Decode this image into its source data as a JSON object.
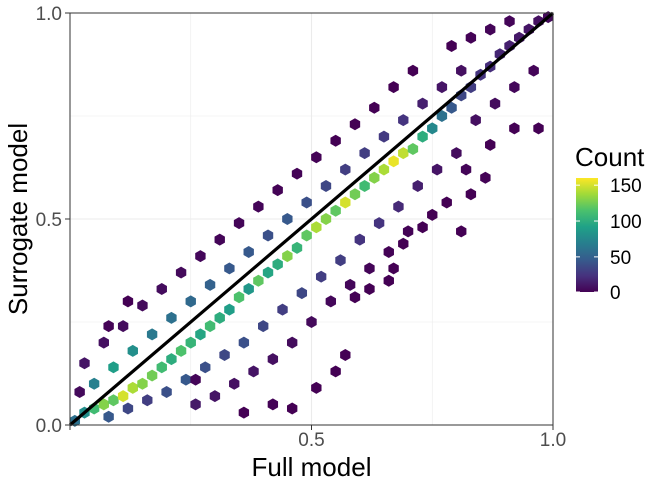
{
  "chart_data": {
    "type": "heatmap",
    "subtype": "hexbin",
    "title": "",
    "xlabel": "Full model",
    "ylabel": "Surrogate model",
    "xlim": [
      0,
      1
    ],
    "ylim": [
      0,
      1
    ],
    "x_ticks": [
      0.0,
      0.5,
      1.0
    ],
    "y_ticks": [
      0.0,
      0.5,
      1.0
    ],
    "x_tick_labels": [
      "",
      "0.5",
      "1.0"
    ],
    "y_tick_labels": [
      "0.0",
      "0.5",
      "1.0"
    ],
    "grid": true,
    "reference_line": {
      "slope": 1,
      "intercept": 0,
      "color": "#000000"
    },
    "legend": {
      "title": "Count",
      "position": "right",
      "ticks": [
        0,
        50,
        100,
        150
      ],
      "tick_labels": [
        "0",
        "50",
        "100",
        "150"
      ],
      "min": 1,
      "max": 160,
      "colormap": "viridis"
    },
    "colors": {
      "viridis": [
        "#440154",
        "#46327e",
        "#365c8d",
        "#277f8e",
        "#1fa187",
        "#4ac16d",
        "#a0da39",
        "#fde725"
      ],
      "grid": "#ebebeb",
      "panel_border": "#333333",
      "tick_text": "#4d4d4d",
      "axis_title": "#000000"
    },
    "hex_size_data_units": 0.02,
    "bins": [
      {
        "x": 0.01,
        "y": 0.01,
        "count": 60
      },
      {
        "x": 0.03,
        "y": 0.03,
        "count": 80
      },
      {
        "x": 0.05,
        "y": 0.04,
        "count": 110
      },
      {
        "x": 0.07,
        "y": 0.05,
        "count": 130
      },
      {
        "x": 0.09,
        "y": 0.06,
        "count": 120
      },
      {
        "x": 0.11,
        "y": 0.07,
        "count": 150
      },
      {
        "x": 0.13,
        "y": 0.09,
        "count": 140
      },
      {
        "x": 0.15,
        "y": 0.1,
        "count": 130
      },
      {
        "x": 0.17,
        "y": 0.12,
        "count": 125
      },
      {
        "x": 0.19,
        "y": 0.14,
        "count": 110
      },
      {
        "x": 0.21,
        "y": 0.16,
        "count": 100
      },
      {
        "x": 0.23,
        "y": 0.18,
        "count": 115
      },
      {
        "x": 0.25,
        "y": 0.2,
        "count": 105
      },
      {
        "x": 0.27,
        "y": 0.22,
        "count": 95
      },
      {
        "x": 0.29,
        "y": 0.24,
        "count": 110
      },
      {
        "x": 0.31,
        "y": 0.26,
        "count": 100
      },
      {
        "x": 0.33,
        "y": 0.28,
        "count": 90
      },
      {
        "x": 0.35,
        "y": 0.31,
        "count": 115
      },
      {
        "x": 0.37,
        "y": 0.33,
        "count": 85
      },
      {
        "x": 0.39,
        "y": 0.35,
        "count": 120
      },
      {
        "x": 0.41,
        "y": 0.37,
        "count": 95
      },
      {
        "x": 0.43,
        "y": 0.39,
        "count": 100
      },
      {
        "x": 0.45,
        "y": 0.41,
        "count": 130
      },
      {
        "x": 0.47,
        "y": 0.43,
        "count": 105
      },
      {
        "x": 0.49,
        "y": 0.46,
        "count": 120
      },
      {
        "x": 0.51,
        "y": 0.48,
        "count": 140
      },
      {
        "x": 0.53,
        "y": 0.5,
        "count": 130
      },
      {
        "x": 0.55,
        "y": 0.52,
        "count": 120
      },
      {
        "x": 0.57,
        "y": 0.54,
        "count": 150
      },
      {
        "x": 0.59,
        "y": 0.56,
        "count": 125
      },
      {
        "x": 0.61,
        "y": 0.58,
        "count": 110
      },
      {
        "x": 0.63,
        "y": 0.6,
        "count": 130
      },
      {
        "x": 0.65,
        "y": 0.62,
        "count": 140
      },
      {
        "x": 0.67,
        "y": 0.64,
        "count": 155
      },
      {
        "x": 0.69,
        "y": 0.66,
        "count": 145
      },
      {
        "x": 0.71,
        "y": 0.67,
        "count": 120
      },
      {
        "x": 0.73,
        "y": 0.7,
        "count": 100
      },
      {
        "x": 0.75,
        "y": 0.72,
        "count": 75
      },
      {
        "x": 0.77,
        "y": 0.75,
        "count": 60
      },
      {
        "x": 0.79,
        "y": 0.77,
        "count": 45
      },
      {
        "x": 0.81,
        "y": 0.8,
        "count": 35
      },
      {
        "x": 0.83,
        "y": 0.82,
        "count": 30
      },
      {
        "x": 0.85,
        "y": 0.85,
        "count": 25
      },
      {
        "x": 0.87,
        "y": 0.87,
        "count": 22
      },
      {
        "x": 0.89,
        "y": 0.9,
        "count": 18
      },
      {
        "x": 0.91,
        "y": 0.92,
        "count": 15
      },
      {
        "x": 0.93,
        "y": 0.94,
        "count": 12
      },
      {
        "x": 0.95,
        "y": 0.96,
        "count": 10
      },
      {
        "x": 0.97,
        "y": 0.98,
        "count": 8
      },
      {
        "x": 0.99,
        "y": 0.99,
        "count": 5
      },
      {
        "x": 0.05,
        "y": 0.1,
        "count": 70
      },
      {
        "x": 0.09,
        "y": 0.14,
        "count": 90
      },
      {
        "x": 0.13,
        "y": 0.18,
        "count": 80
      },
      {
        "x": 0.17,
        "y": 0.22,
        "count": 65
      },
      {
        "x": 0.21,
        "y": 0.26,
        "count": 60
      },
      {
        "x": 0.25,
        "y": 0.3,
        "count": 55
      },
      {
        "x": 0.29,
        "y": 0.34,
        "count": 50
      },
      {
        "x": 0.33,
        "y": 0.38,
        "count": 45
      },
      {
        "x": 0.37,
        "y": 0.42,
        "count": 45
      },
      {
        "x": 0.41,
        "y": 0.46,
        "count": 40
      },
      {
        "x": 0.45,
        "y": 0.5,
        "count": 45
      },
      {
        "x": 0.49,
        "y": 0.54,
        "count": 40
      },
      {
        "x": 0.53,
        "y": 0.58,
        "count": 35
      },
      {
        "x": 0.57,
        "y": 0.62,
        "count": 30
      },
      {
        "x": 0.61,
        "y": 0.66,
        "count": 30
      },
      {
        "x": 0.65,
        "y": 0.7,
        "count": 28
      },
      {
        "x": 0.69,
        "y": 0.74,
        "count": 25
      },
      {
        "x": 0.73,
        "y": 0.78,
        "count": 15
      },
      {
        "x": 0.77,
        "y": 0.82,
        "count": 10
      },
      {
        "x": 0.81,
        "y": 0.86,
        "count": 8
      },
      {
        "x": 0.08,
        "y": 0.02,
        "count": 45
      },
      {
        "x": 0.12,
        "y": 0.04,
        "count": 35
      },
      {
        "x": 0.16,
        "y": 0.06,
        "count": 30
      },
      {
        "x": 0.2,
        "y": 0.08,
        "count": 40
      },
      {
        "x": 0.24,
        "y": 0.11,
        "count": 45
      },
      {
        "x": 0.28,
        "y": 0.14,
        "count": 40
      },
      {
        "x": 0.32,
        "y": 0.17,
        "count": 35
      },
      {
        "x": 0.36,
        "y": 0.2,
        "count": 40
      },
      {
        "x": 0.4,
        "y": 0.24,
        "count": 35
      },
      {
        "x": 0.44,
        "y": 0.28,
        "count": 30
      },
      {
        "x": 0.48,
        "y": 0.32,
        "count": 35
      },
      {
        "x": 0.52,
        "y": 0.36,
        "count": 30
      },
      {
        "x": 0.56,
        "y": 0.4,
        "count": 30
      },
      {
        "x": 0.6,
        "y": 0.45,
        "count": 25
      },
      {
        "x": 0.64,
        "y": 0.49,
        "count": 25
      },
      {
        "x": 0.68,
        "y": 0.53,
        "count": 20
      },
      {
        "x": 0.72,
        "y": 0.58,
        "count": 15
      },
      {
        "x": 0.76,
        "y": 0.62,
        "count": 10
      },
      {
        "x": 0.26,
        "y": 0.05,
        "count": 12
      },
      {
        "x": 0.3,
        "y": 0.07,
        "count": 10
      },
      {
        "x": 0.34,
        "y": 0.1,
        "count": 8
      },
      {
        "x": 0.38,
        "y": 0.13,
        "count": 10
      },
      {
        "x": 0.42,
        "y": 0.16,
        "count": 8
      },
      {
        "x": 0.46,
        "y": 0.2,
        "count": 6
      },
      {
        "x": 0.5,
        "y": 0.25,
        "count": 5
      },
      {
        "x": 0.54,
        "y": 0.3,
        "count": 4
      },
      {
        "x": 0.58,
        "y": 0.34,
        "count": 4
      },
      {
        "x": 0.62,
        "y": 0.38,
        "count": 3
      },
      {
        "x": 0.66,
        "y": 0.42,
        "count": 2
      },
      {
        "x": 0.7,
        "y": 0.47,
        "count": 2
      },
      {
        "x": 0.03,
        "y": 0.15,
        "count": 10
      },
      {
        "x": 0.07,
        "y": 0.2,
        "count": 8
      },
      {
        "x": 0.11,
        "y": 0.24,
        "count": 6
      },
      {
        "x": 0.15,
        "y": 0.29,
        "count": 5
      },
      {
        "x": 0.19,
        "y": 0.33,
        "count": 6
      },
      {
        "x": 0.23,
        "y": 0.37,
        "count": 5
      },
      {
        "x": 0.27,
        "y": 0.41,
        "count": 4
      },
      {
        "x": 0.31,
        "y": 0.45,
        "count": 3
      },
      {
        "x": 0.35,
        "y": 0.49,
        "count": 3
      },
      {
        "x": 0.39,
        "y": 0.53,
        "count": 3
      },
      {
        "x": 0.43,
        "y": 0.57,
        "count": 2
      },
      {
        "x": 0.47,
        "y": 0.61,
        "count": 2
      },
      {
        "x": 0.51,
        "y": 0.65,
        "count": 2
      },
      {
        "x": 0.55,
        "y": 0.69,
        "count": 1
      },
      {
        "x": 0.59,
        "y": 0.73,
        "count": 1
      },
      {
        "x": 0.63,
        "y": 0.77,
        "count": 1
      },
      {
        "x": 0.67,
        "y": 0.82,
        "count": 1
      },
      {
        "x": 0.71,
        "y": 0.86,
        "count": 1
      },
      {
        "x": 0.79,
        "y": 0.92,
        "count": 1
      },
      {
        "x": 0.83,
        "y": 0.94,
        "count": 2
      },
      {
        "x": 0.87,
        "y": 0.96,
        "count": 3
      },
      {
        "x": 0.91,
        "y": 0.98,
        "count": 3
      },
      {
        "x": 0.84,
        "y": 0.74,
        "count": 8
      },
      {
        "x": 0.88,
        "y": 0.78,
        "count": 6
      },
      {
        "x": 0.92,
        "y": 0.82,
        "count": 4
      },
      {
        "x": 0.96,
        "y": 0.86,
        "count": 3
      },
      {
        "x": 0.8,
        "y": 0.66,
        "count": 6
      },
      {
        "x": 0.82,
        "y": 0.62,
        "count": 3
      },
      {
        "x": 0.86,
        "y": 0.6,
        "count": 2
      },
      {
        "x": 0.92,
        "y": 0.72,
        "count": 1
      },
      {
        "x": 0.97,
        "y": 0.72,
        "count": 1
      },
      {
        "x": 0.87,
        "y": 0.68,
        "count": 1
      },
      {
        "x": 0.78,
        "y": 0.54,
        "count": 1
      },
      {
        "x": 0.83,
        "y": 0.56,
        "count": 1
      },
      {
        "x": 0.75,
        "y": 0.51,
        "count": 1
      },
      {
        "x": 0.73,
        "y": 0.48,
        "count": 1
      },
      {
        "x": 0.81,
        "y": 0.47,
        "count": 1
      },
      {
        "x": 0.69,
        "y": 0.44,
        "count": 1
      },
      {
        "x": 0.67,
        "y": 0.38,
        "count": 1
      },
      {
        "x": 0.62,
        "y": 0.33,
        "count": 1
      },
      {
        "x": 0.66,
        "y": 0.35,
        "count": 1
      },
      {
        "x": 0.59,
        "y": 0.31,
        "count": 1
      },
      {
        "x": 0.57,
        "y": 0.17,
        "count": 1
      },
      {
        "x": 0.55,
        "y": 0.13,
        "count": 1
      },
      {
        "x": 0.51,
        "y": 0.09,
        "count": 1
      },
      {
        "x": 0.46,
        "y": 0.04,
        "count": 1
      },
      {
        "x": 0.42,
        "y": 0.05,
        "count": 2
      },
      {
        "x": 0.36,
        "y": 0.03,
        "count": 1
      },
      {
        "x": 0.26,
        "y": 0.11,
        "count": 3
      },
      {
        "x": 0.12,
        "y": 0.3,
        "count": 1
      },
      {
        "x": 0.08,
        "y": 0.24,
        "count": 2
      },
      {
        "x": 0.02,
        "y": 0.08,
        "count": 5
      }
    ]
  }
}
